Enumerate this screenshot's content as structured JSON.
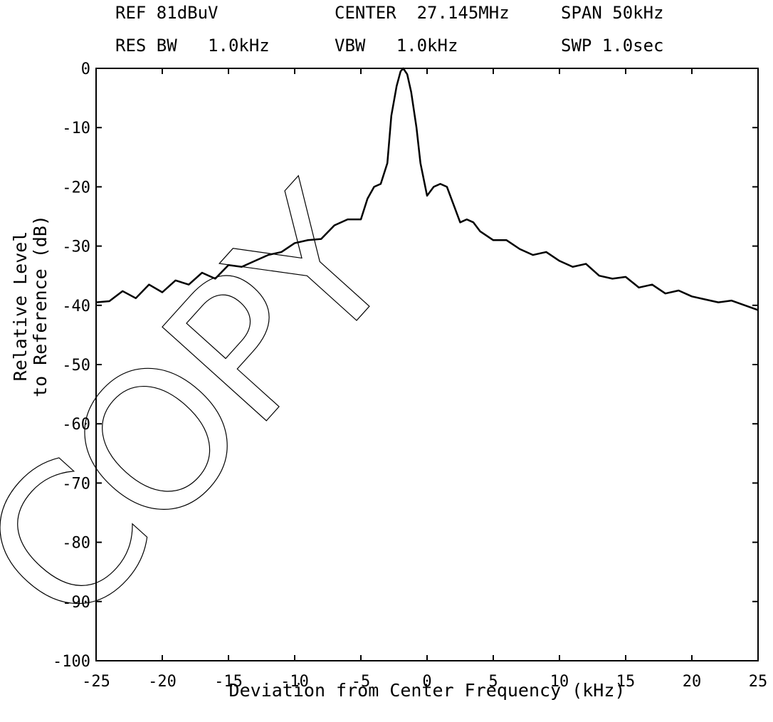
{
  "chart_data": {
    "type": "line",
    "header": [
      "REF 81dBuV",
      "CENTER  27.145MHz",
      "SPAN 50kHz",
      "RES BW   1.0kHz",
      "VBW   1.0kHz",
      "SWP 1.0sec"
    ],
    "watermark": "COPY",
    "y_label": [
      "Relative Level",
      "to Reference (dB)"
    ],
    "x_label": "Deviation from Center Frequency (kHz)",
    "xlim": [
      -25,
      25
    ],
    "xticks": [
      -25,
      -20,
      -15,
      -10,
      -5,
      0,
      5,
      10,
      15,
      20,
      25
    ],
    "ylim": [
      -100,
      0
    ],
    "yticks": [
      0,
      -10,
      -20,
      -30,
      -40,
      -50,
      -60,
      -70,
      -80,
      -90,
      -100
    ],
    "grid": false,
    "series": [
      {
        "color": "#000000",
        "x": [
          -25,
          -24,
          -23,
          -22,
          -21,
          -20,
          -19,
          -18,
          -17,
          -16,
          -15,
          -14,
          -13,
          -12,
          -11,
          -10,
          -9,
          -8,
          -7,
          -6,
          -5,
          -4.5,
          -4,
          -3.5,
          -3,
          -2.7,
          -2.3,
          -2,
          -1.8,
          -1.5,
          -1.2,
          -0.8,
          -0.5,
          0,
          0.5,
          1,
          1.5,
          2,
          2.5,
          3,
          3.5,
          4,
          5,
          6,
          7,
          8,
          9,
          10,
          11,
          12,
          13,
          14,
          15,
          16,
          17,
          18,
          19,
          20,
          21,
          22,
          23,
          24,
          25
        ],
        "values": [
          -39.5,
          -39.3,
          -37.6,
          -38.8,
          -36.5,
          -37.8,
          -35.8,
          -36.5,
          -34.5,
          -35.5,
          -33.2,
          -33.5,
          -32.5,
          -31.5,
          -31,
          -29.5,
          -29,
          -28.8,
          -26.5,
          -25.5,
          -25.5,
          -22,
          -20,
          -19.5,
          -16,
          -8,
          -3,
          -0.5,
          0,
          -1,
          -4,
          -10,
          -16,
          -21.5,
          -20,
          -19.5,
          -20,
          -23,
          -26,
          -25.5,
          -26,
          -27.5,
          -29,
          -29,
          -30.5,
          -31.5,
          -31,
          -32.5,
          -33.5,
          -33,
          -35,
          -35.5,
          -35.2,
          -37,
          -36.5,
          -38,
          -37.5,
          -38.5,
          -39,
          -39.5,
          -39.2,
          -40,
          -40.8
        ]
      }
    ]
  }
}
